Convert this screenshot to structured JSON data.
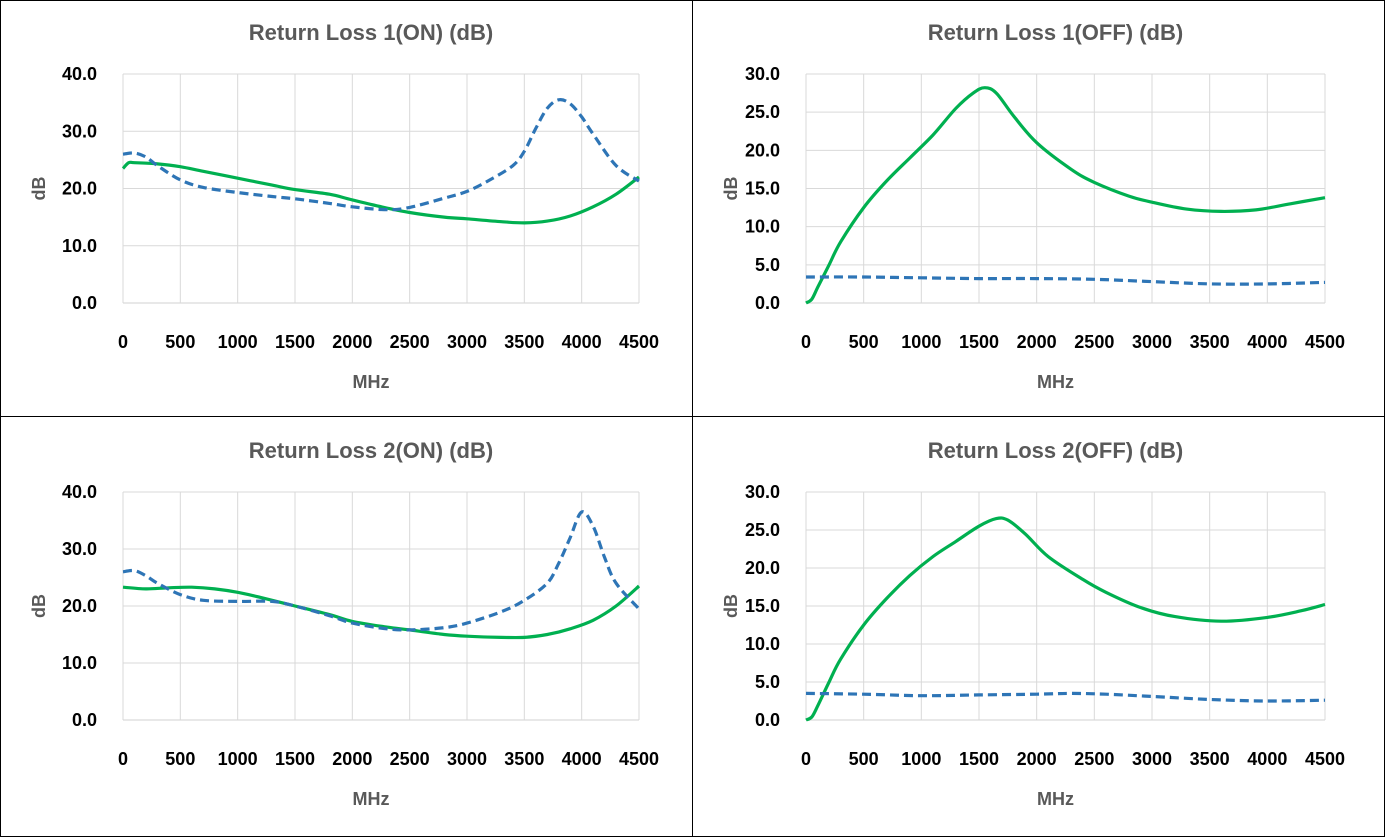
{
  "chart_data": [
    {
      "type": "line",
      "title": "Return Loss 1(ON) (dB)",
      "xlabel": "MHz",
      "ylabel": "dB",
      "xlim": [
        0,
        4500
      ],
      "ylim": [
        0,
        40
      ],
      "xticks": [
        "0",
        "500",
        "1000",
        "1500",
        "2000",
        "2500",
        "3000",
        "3500",
        "4000",
        "4500"
      ],
      "yticks": [
        "0.0",
        "10.0",
        "20.0",
        "30.0",
        "40.0"
      ],
      "grid": true,
      "series": [
        {
          "style": "solid",
          "color": "#00b050",
          "x": [
            0,
            50,
            100,
            300,
            500,
            700,
            1000,
            1300,
            1500,
            1800,
            2000,
            2300,
            2500,
            2800,
            3000,
            3300,
            3500,
            3700,
            3900,
            4100,
            4300,
            4500
          ],
          "y": [
            23.5,
            24.5,
            24.5,
            24.3,
            23.8,
            23.0,
            21.8,
            20.6,
            19.8,
            19.0,
            18.0,
            16.6,
            15.8,
            15.0,
            14.7,
            14.2,
            14.0,
            14.3,
            15.2,
            16.8,
            19.0,
            22.0
          ]
        },
        {
          "style": "dashed",
          "color": "#2e75b6",
          "x": [
            0,
            100,
            200,
            300,
            500,
            700,
            1000,
            1300,
            1500,
            1800,
            2000,
            2300,
            2500,
            2800,
            3000,
            3200,
            3400,
            3500,
            3600,
            3700,
            3800,
            3900,
            4000,
            4100,
            4300,
            4500
          ],
          "y": [
            26.0,
            26.2,
            25.5,
            24.0,
            21.5,
            20.2,
            19.3,
            18.6,
            18.2,
            17.4,
            16.8,
            16.3,
            16.7,
            18.3,
            19.5,
            21.5,
            24.0,
            26.5,
            30.5,
            34.0,
            35.5,
            34.8,
            32.5,
            29.5,
            24.0,
            21.3
          ]
        }
      ]
    },
    {
      "type": "line",
      "title": "Return Loss 1(OFF) (dB)",
      "xlabel": "MHz",
      "ylabel": "dB",
      "xlim": [
        0,
        4500
      ],
      "ylim": [
        0,
        30
      ],
      "xticks": [
        "0",
        "500",
        "1000",
        "1500",
        "2000",
        "2500",
        "3000",
        "3500",
        "4000",
        "4500"
      ],
      "yticks": [
        "0.0",
        "5.0",
        "10.0",
        "15.0",
        "20.0",
        "25.0",
        "30.0"
      ],
      "grid": true,
      "series": [
        {
          "style": "solid",
          "color": "#00b050",
          "x": [
            0,
            50,
            100,
            200,
            300,
            500,
            700,
            900,
            1100,
            1300,
            1450,
            1550,
            1650,
            1800,
            2000,
            2300,
            2500,
            2800,
            3000,
            3300,
            3600,
            3900,
            4200,
            4500
          ],
          "y": [
            0.0,
            0.5,
            2.0,
            5.0,
            8.0,
            12.5,
            16.0,
            19.0,
            22.0,
            25.5,
            27.5,
            28.2,
            27.5,
            24.5,
            21.0,
            17.5,
            15.8,
            14.0,
            13.2,
            12.3,
            12.0,
            12.2,
            13.0,
            13.8
          ]
        },
        {
          "style": "dashed",
          "color": "#2e75b6",
          "x": [
            0,
            500,
            1000,
            1500,
            2000,
            2500,
            3000,
            3500,
            4000,
            4500
          ],
          "y": [
            3.4,
            3.4,
            3.3,
            3.2,
            3.2,
            3.1,
            2.8,
            2.5,
            2.5,
            2.7
          ]
        }
      ]
    },
    {
      "type": "line",
      "title": "Return Loss 2(ON) (dB)",
      "xlabel": "MHz",
      "ylabel": "dB",
      "xlim": [
        0,
        4500
      ],
      "ylim": [
        0,
        40
      ],
      "xticks": [
        "0",
        "500",
        "1000",
        "1500",
        "2000",
        "2500",
        "3000",
        "3500",
        "4000",
        "4500"
      ],
      "yticks": [
        "0.0",
        "10.0",
        "20.0",
        "30.0",
        "40.0"
      ],
      "grid": true,
      "series": [
        {
          "style": "solid",
          "color": "#00b050",
          "x": [
            0,
            200,
            400,
            600,
            800,
            1000,
            1200,
            1500,
            1800,
            2000,
            2300,
            2500,
            2800,
            3000,
            3300,
            3500,
            3700,
            3900,
            4100,
            4300,
            4500
          ],
          "y": [
            23.3,
            23.0,
            23.2,
            23.3,
            23.0,
            22.4,
            21.5,
            20.0,
            18.5,
            17.3,
            16.3,
            15.8,
            15.0,
            14.7,
            14.5,
            14.5,
            15.0,
            16.0,
            17.5,
            20.0,
            23.5
          ]
        },
        {
          "style": "dashed",
          "color": "#2e75b6",
          "x": [
            0,
            100,
            200,
            300,
            500,
            700,
            1000,
            1300,
            1500,
            1800,
            2000,
            2300,
            2500,
            2800,
            3000,
            3300,
            3500,
            3700,
            3800,
            3900,
            4000,
            4100,
            4200,
            4300,
            4500
          ],
          "y": [
            26.0,
            26.2,
            25.3,
            24.0,
            22.0,
            21.0,
            20.8,
            20.8,
            20.0,
            18.3,
            17.0,
            16.0,
            15.8,
            16.2,
            17.0,
            19.0,
            21.0,
            24.0,
            27.5,
            32.0,
            36.5,
            34.0,
            28.5,
            24.0,
            19.5
          ]
        }
      ]
    },
    {
      "type": "line",
      "title": "Return Loss 2(OFF) (dB)",
      "xlabel": "MHz",
      "ylabel": "dB",
      "xlim": [
        0,
        4500
      ],
      "ylim": [
        0,
        30
      ],
      "xticks": [
        "0",
        "500",
        "1000",
        "1500",
        "2000",
        "2500",
        "3000",
        "3500",
        "4000",
        "4500"
      ],
      "yticks": [
        "0.0",
        "5.0",
        "10.0",
        "15.0",
        "20.0",
        "25.0",
        "30.0"
      ],
      "grid": true,
      "series": [
        {
          "style": "solid",
          "color": "#00b050",
          "x": [
            0,
            50,
            100,
            200,
            300,
            500,
            700,
            900,
            1100,
            1300,
            1500,
            1650,
            1750,
            1900,
            2100,
            2400,
            2600,
            2900,
            3200,
            3600,
            4000,
            4300,
            4500
          ],
          "y": [
            0.0,
            0.4,
            1.8,
            5.0,
            8.0,
            12.5,
            16.0,
            19.0,
            21.5,
            23.5,
            25.5,
            26.5,
            26.3,
            24.5,
            21.5,
            18.5,
            16.8,
            14.8,
            13.6,
            13.0,
            13.5,
            14.4,
            15.2
          ]
        },
        {
          "style": "dashed",
          "color": "#2e75b6",
          "x": [
            0,
            500,
            1000,
            1500,
            2000,
            2300,
            2600,
            3000,
            3500,
            4000,
            4500
          ],
          "y": [
            3.5,
            3.4,
            3.2,
            3.3,
            3.4,
            3.5,
            3.4,
            3.1,
            2.7,
            2.5,
            2.6
          ]
        }
      ]
    }
  ]
}
